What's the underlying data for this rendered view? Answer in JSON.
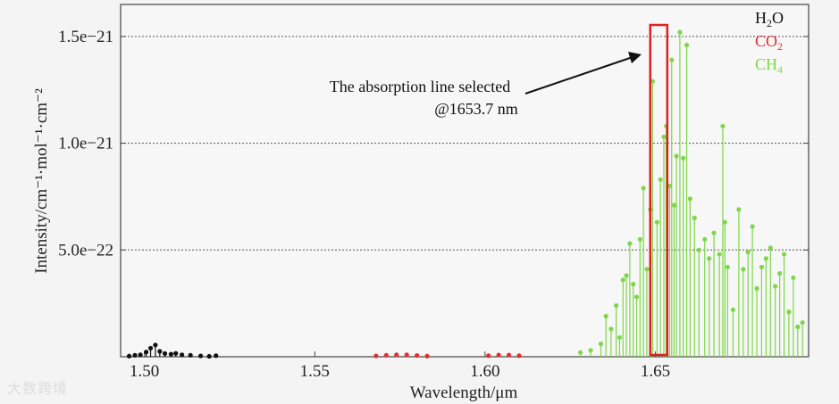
{
  "watermark": "大数跨境",
  "chart_data": {
    "type": "scatter",
    "title": "",
    "xlabel": "Wavelength/μm",
    "ylabel": "Intensity/cm⁻¹·mol⁻¹·cm⁻²",
    "xlim": [
      1.493,
      1.695
    ],
    "ylim": [
      0,
      1.65e-21
    ],
    "x_ticks": [
      1.5,
      1.55,
      1.6,
      1.65
    ],
    "x_tick_labels": [
      "1.50",
      "1.55",
      "1.60",
      "1.65"
    ],
    "y_ticks": [
      5e-22,
      1e-21,
      1.5e-21
    ],
    "y_tick_labels": [
      "5.0e−22",
      "1.0e−21",
      "1.5e−21"
    ],
    "grid": "horizontal dotted",
    "legend_position": "top-right",
    "series": [
      {
        "name": "H₂O",
        "legend_main": "H",
        "legend_sub": "2",
        "legend_tail": "O",
        "color": "#111111",
        "points": [
          [
            1.4955,
            3e-24
          ],
          [
            1.4972,
            7e-24
          ],
          [
            1.4988,
            9e-24
          ],
          [
            1.5005,
            2.2e-23
          ],
          [
            1.5018,
            4e-23
          ],
          [
            1.5032,
            5.5e-23
          ],
          [
            1.5045,
            2.5e-23
          ],
          [
            1.506,
            1.5e-23
          ],
          [
            1.5078,
            1.2e-23
          ],
          [
            1.5092,
            1.6e-23
          ],
          [
            1.511,
            9e-24
          ],
          [
            1.5135,
            7e-24
          ],
          [
            1.5165,
            4e-24
          ],
          [
            1.519,
            2e-24
          ],
          [
            1.521,
            5e-24
          ]
        ]
      },
      {
        "name": "CO₂",
        "legend_main": "CO",
        "legend_sub": "2",
        "legend_tail": "",
        "color": "#e03030",
        "points": [
          [
            1.568,
            4e-24
          ],
          [
            1.571,
            7e-24
          ],
          [
            1.574,
            9e-24
          ],
          [
            1.577,
            9e-24
          ],
          [
            1.58,
            6e-24
          ],
          [
            1.583,
            3e-24
          ],
          [
            1.601,
            5e-24
          ],
          [
            1.604,
            8e-24
          ],
          [
            1.607,
            8e-24
          ],
          [
            1.61,
            5e-24
          ]
        ]
      },
      {
        "name": "CH₄",
        "legend_main": "CH",
        "legend_sub": "4",
        "legend_tail": "",
        "color": "#7ed64a",
        "points": [
          [
            1.628,
            2e-23
          ],
          [
            1.631,
            3e-23
          ],
          [
            1.634,
            6e-23
          ],
          [
            1.6355,
            1.9e-22
          ],
          [
            1.637,
            1.3e-22
          ],
          [
            1.6385,
            2.4e-22
          ],
          [
            1.6395,
            9e-23
          ],
          [
            1.6405,
            3.6e-22
          ],
          [
            1.6415,
            3.8e-22
          ],
          [
            1.6425,
            5.3e-22
          ],
          [
            1.6435,
            3.4e-22
          ],
          [
            1.6445,
            2.8e-22
          ],
          [
            1.6455,
            5.5e-22
          ],
          [
            1.6465,
            7.9e-22
          ],
          [
            1.6475,
            4.1e-22
          ],
          [
            1.6485,
            6.9e-22
          ],
          [
            1.6492,
            1.29e-21
          ],
          [
            1.6505,
            6.3e-22
          ],
          [
            1.6515,
            8.3e-22
          ],
          [
            1.6525,
            1.03e-21
          ],
          [
            1.6532,
            1.08e-21
          ],
          [
            1.6542,
            8e-22
          ],
          [
            1.6548,
            1.39e-21
          ],
          [
            1.6555,
            7.1e-22
          ],
          [
            1.6562,
            9.4e-22
          ],
          [
            1.6572,
            1.52e-21
          ],
          [
            1.6582,
            9.3e-22
          ],
          [
            1.6592,
            1.46e-21
          ],
          [
            1.6602,
            7.4e-22
          ],
          [
            1.6615,
            6.5e-22
          ],
          [
            1.6628,
            5e-22
          ],
          [
            1.6645,
            5.5e-22
          ],
          [
            1.6658,
            4.6e-22
          ],
          [
            1.6672,
            5.8e-22
          ],
          [
            1.6688,
            4.8e-22
          ],
          [
            1.6698,
            1.08e-21
          ],
          [
            1.6704,
            6.3e-22
          ],
          [
            1.6712,
            4.2e-22
          ],
          [
            1.6728,
            2.2e-22
          ],
          [
            1.6745,
            6.9e-22
          ],
          [
            1.6758,
            4.1e-22
          ],
          [
            1.6772,
            4.9e-22
          ],
          [
            1.6785,
            6.1e-22
          ],
          [
            1.6798,
            3.2e-22
          ],
          [
            1.6812,
            4.2e-22
          ],
          [
            1.6825,
            4.6e-22
          ],
          [
            1.6838,
            5.1e-22
          ],
          [
            1.6852,
            3.3e-22
          ],
          [
            1.6865,
            3.9e-22
          ],
          [
            1.6878,
            4.8e-22
          ],
          [
            1.6892,
            2.1e-22
          ],
          [
            1.6905,
            3.7e-22
          ],
          [
            1.6918,
            1.4e-22
          ],
          [
            1.6932,
            1.6e-22
          ]
        ]
      }
    ],
    "annotation": {
      "line1": "The absorption line selected",
      "line2": "@1653.7 nm",
      "highlight_x": [
        1.6485,
        1.6535
      ],
      "highlight_color": "#e02020"
    }
  }
}
